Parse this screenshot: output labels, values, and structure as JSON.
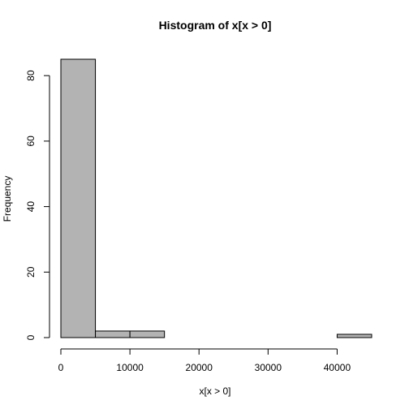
{
  "chart_data": {
    "type": "bar",
    "title": "Histogram of x[x > 0]",
    "xlabel": "x[x > 0]",
    "ylabel": "Frequency",
    "bins": [
      {
        "start": 0,
        "end": 5000,
        "count": 85
      },
      {
        "start": 5000,
        "end": 10000,
        "count": 2
      },
      {
        "start": 10000,
        "end": 15000,
        "count": 2
      },
      {
        "start": 15000,
        "end": 20000,
        "count": 0
      },
      {
        "start": 20000,
        "end": 25000,
        "count": 0
      },
      {
        "start": 25000,
        "end": 30000,
        "count": 0
      },
      {
        "start": 30000,
        "end": 35000,
        "count": 0
      },
      {
        "start": 35000,
        "end": 40000,
        "count": 0
      },
      {
        "start": 40000,
        "end": 45000,
        "count": 1
      }
    ],
    "xlim": [
      0,
      45000
    ],
    "ylim": [
      0,
      85
    ],
    "xticks": [
      0,
      10000,
      20000,
      30000,
      40000
    ],
    "yticks": [
      0,
      20,
      40,
      60,
      80
    ],
    "xtick_labels": [
      "0",
      "10000",
      "20000",
      "30000",
      "40000"
    ],
    "ytick_labels": [
      "0",
      "20",
      "40",
      "60",
      "80"
    ],
    "bar_color": "#b3b3b3",
    "grid": false
  }
}
